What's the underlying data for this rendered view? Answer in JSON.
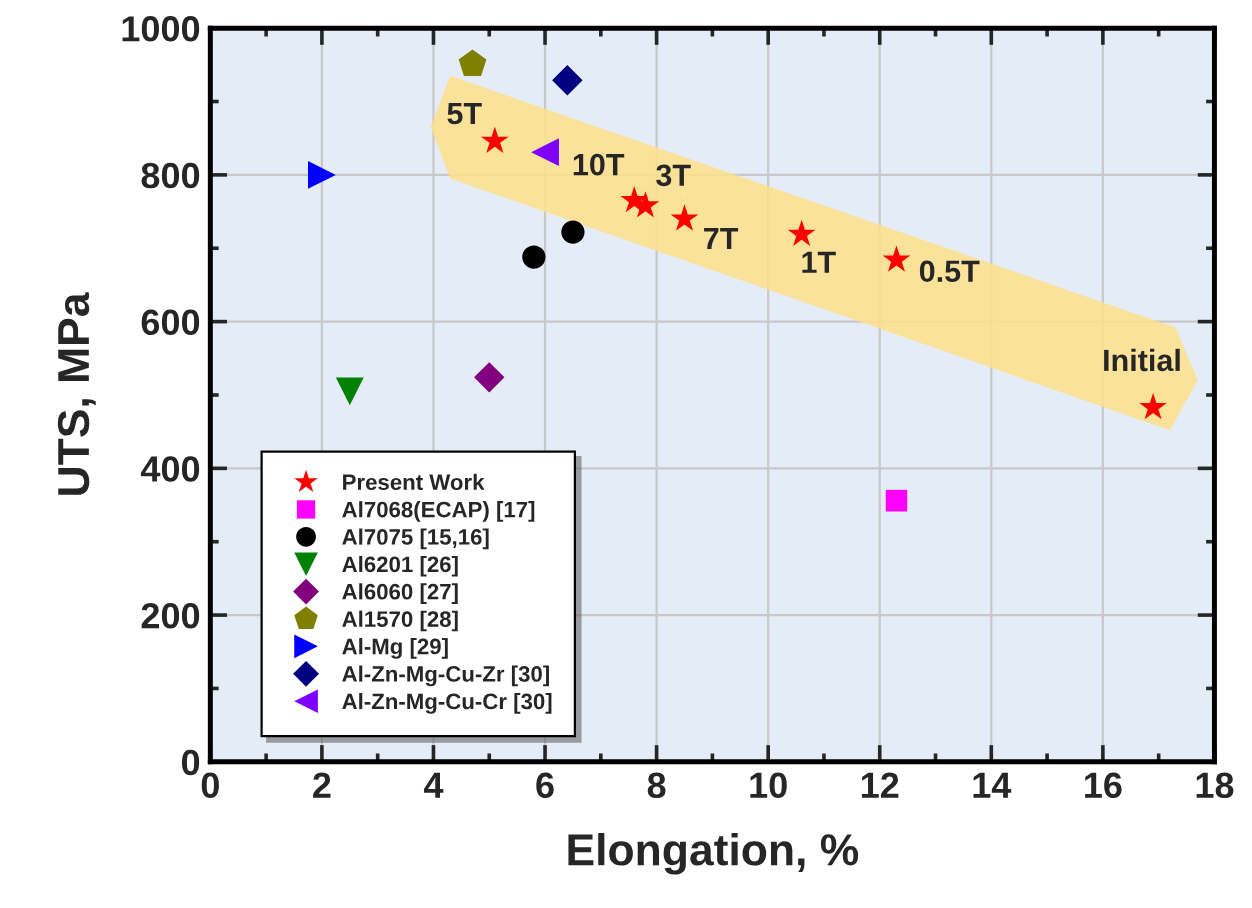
{
  "chart_data": {
    "type": "scatter",
    "xlabel": "Elongation, %",
    "ylabel": "UTS, MPa",
    "xlim": [
      0,
      18
    ],
    "xticks": [
      0,
      2,
      4,
      6,
      8,
      10,
      12,
      14,
      16,
      18
    ],
    "ylim": [
      0,
      1000
    ],
    "yticks": [
      0,
      200,
      400,
      600,
      800,
      1000
    ],
    "grid": true,
    "legend": "bottom left",
    "series": [
      {
        "name": "Present Work",
        "color": "#ff0000",
        "marker": "star",
        "x": [
          5.1,
          7.6,
          7.8,
          8.5,
          10.6,
          12.3,
          16.9
        ],
        "values": [
          846,
          765,
          758,
          740,
          719,
          684,
          483
        ]
      },
      {
        "name": "Al7068(ECAP) [17]",
        "color": "#ff00ff",
        "marker": "square",
        "x": [
          12.3
        ],
        "values": [
          356
        ]
      },
      {
        "name": "Al7075 [15,16]",
        "color": "#000000",
        "marker": "circle",
        "x": [
          6.5,
          5.8
        ],
        "values": [
          722,
          688
        ]
      },
      {
        "name": "Al6201 [26]",
        "color": "#008000",
        "marker": "triangle_down",
        "x": [
          2.5
        ],
        "values": [
          505
        ]
      },
      {
        "name": "Al6060 [27]",
        "color": "#800080",
        "marker": "diamond",
        "x": [
          5.0
        ],
        "values": [
          524
        ]
      },
      {
        "name": "Al1570 [28]",
        "color": "#808000",
        "x": [
          4.7
        ],
        "values": [
          951
        ]
      },
      {
        "name": "Al-Mg [29]",
        "color": "#0000ff",
        "marker": "triangle_right",
        "x": [
          2.0
        ],
        "values": [
          800
        ]
      },
      {
        "name": "Al-Zn-Mg-Cu-Zr [30]",
        "color": "#000080",
        "marker": "diamond",
        "x": [
          6.4
        ],
        "values": [
          929
        ]
      },
      {
        "name": "Al-Zn-Mg-Cu-Cr [30]",
        "color": "#8000ff",
        "marker": "triangle_left",
        "x": [
          6.0
        ],
        "values": [
          831
        ]
      }
    ],
    "annotations": [
      {
        "text": "5T",
        "x": 5.1,
        "y": 846
      },
      {
        "text": "10T",
        "x": 7.6,
        "y": 765
      },
      {
        "text": "3T",
        "x": 7.8,
        "y": 758
      },
      {
        "text": "7T",
        "x": 8.5,
        "y": 740
      },
      {
        "text": "1T",
        "x": 10.6,
        "y": 719
      },
      {
        "text": "0.5T",
        "x": 12.3,
        "y": 684
      },
      {
        "text": "Initial",
        "x": 16.9,
        "y": 483
      }
    ]
  }
}
